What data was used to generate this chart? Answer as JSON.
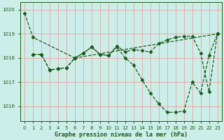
{
  "title": "Graphe pression niveau de la mer (hPa)",
  "bg_color": "#cceee8",
  "grid_color": "#e8aaaa",
  "line_color": "#1a5c1a",
  "ylabel_ticks": [
    1016,
    1017,
    1018,
    1019,
    1020
  ],
  "xlim": [
    -0.5,
    23.5
  ],
  "ylim": [
    1015.4,
    1020.3
  ],
  "line1_x": [
    0,
    1,
    6,
    7,
    8,
    9,
    10,
    11,
    12,
    13,
    14,
    15,
    16,
    17,
    18,
    19,
    20,
    21,
    22,
    23
  ],
  "line1_y": [
    1019.85,
    1018.85,
    1018.0,
    1018.2,
    1018.45,
    1018.15,
    1018.1,
    1018.45,
    1018.0,
    1017.7,
    1017.1,
    1016.55,
    1016.1,
    1015.75,
    1015.75,
    1015.8,
    1017.0,
    1016.55,
    1018.1,
    1019.0
  ],
  "line2_x": [
    1,
    2,
    3,
    4,
    5,
    6,
    7,
    8,
    9,
    10,
    11,
    12,
    13,
    14,
    15,
    16,
    17,
    18,
    19,
    20,
    21,
    22,
    23
  ],
  "line2_y": [
    1018.15,
    1018.15,
    1017.5,
    1017.55,
    1017.6,
    1018.0,
    1018.2,
    1018.45,
    1018.15,
    1018.1,
    1018.5,
    1018.25,
    1018.35,
    1018.3,
    1018.25,
    1018.6,
    1018.75,
    1018.85,
    1018.9,
    1018.9,
    1018.2,
    1016.6,
    1019.0
  ],
  "line3_x": [
    1,
    2,
    3,
    4,
    5,
    6,
    23
  ],
  "line3_y": [
    1018.15,
    1018.15,
    1017.5,
    1017.55,
    1017.6,
    1018.0,
    1019.0
  ]
}
